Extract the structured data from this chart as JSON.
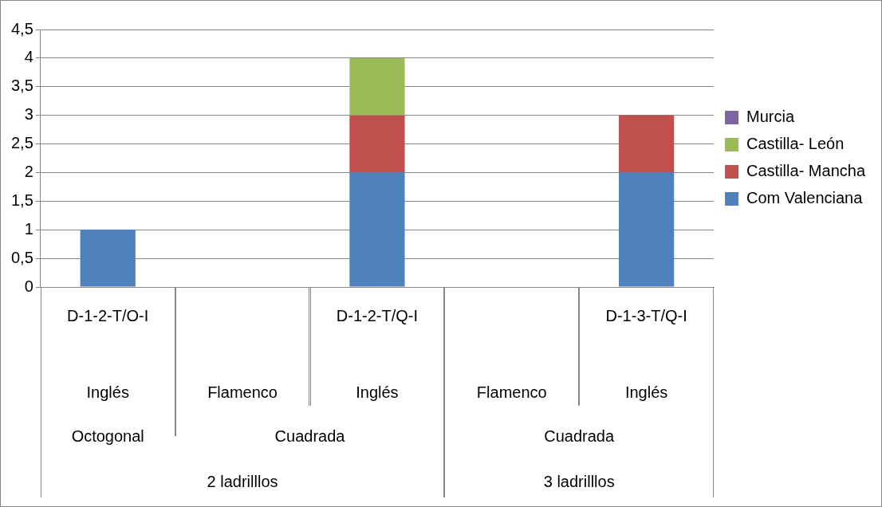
{
  "chart_data": {
    "type": "bar",
    "stacked": true,
    "categories": [
      "D-1-2-T/O-I",
      null,
      "D-1-2-T/Q-I",
      null,
      "D-1-3-T/Q-I"
    ],
    "series": [
      {
        "name": "Com Valenciana",
        "color": "#4f81bd",
        "values": [
          1,
          null,
          2,
          null,
          2
        ]
      },
      {
        "name": "Castilla- Mancha",
        "color": "#c0504d",
        "values": [
          null,
          null,
          1,
          null,
          1
        ]
      },
      {
        "name": "Castilla- León",
        "color": "#9bbb59",
        "values": [
          null,
          null,
          1,
          null,
          null
        ]
      },
      {
        "name": "Murcia",
        "color": "#8064a2",
        "values": [
          null,
          null,
          null,
          null,
          null
        ]
      }
    ],
    "ylim": [
      0,
      4.5
    ],
    "yticks": [
      0,
      {
        "value": 0.5,
        "label": "0,5"
      },
      1,
      {
        "value": 1.5,
        "label": "1,5"
      },
      2,
      {
        "value": 2.5,
        "label": "2,5"
      },
      3,
      {
        "value": 3.5,
        "label": "3,5"
      },
      4,
      {
        "value": 4.5,
        "label": "4,5"
      }
    ],
    "grid": "y",
    "legend": "right",
    "annotations": [
      "Inglés",
      "Flamenco",
      "Inglés",
      "Flamenco",
      "Inglés",
      "Octogonal",
      "Cuadrada",
      "Cuadrada",
      "2 ladrilllos",
      "3 ladrilllos"
    ]
  }
}
